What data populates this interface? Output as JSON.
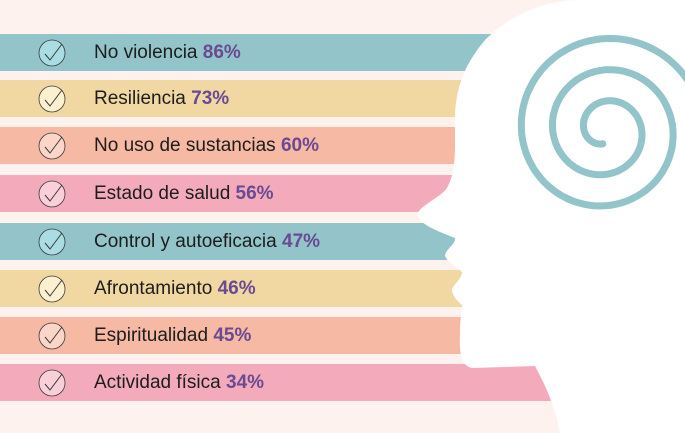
{
  "items": [
    {
      "label": "No violencia",
      "percent": "86%",
      "color": "#92c4c9",
      "icon_fill": "#a9dde3"
    },
    {
      "label": "Resiliencia",
      "percent": "73%",
      "color": "#f1d8a3",
      "icon_fill": "#fbf1d0"
    },
    {
      "label": "No uso de sustancias",
      "percent": "60%",
      "color": "#f6b9a3",
      "icon_fill": "#fbd6c8"
    },
    {
      "label": "Estado de salud",
      "percent": "56%",
      "color": "#f3abbb",
      "icon_fill": "#f9d0da"
    },
    {
      "label": "Control y autoeficacia",
      "percent": "47%",
      "color": "#92c4c9",
      "icon_fill": "#a9dde3"
    },
    {
      "label": "Afrontamiento",
      "percent": "46%",
      "color": "#f1d8a3",
      "icon_fill": "#fbf1d0"
    },
    {
      "label": "Espiritualidad",
      "percent": "45%",
      "color": "#f6b9a3",
      "icon_fill": "#fbd6c8"
    },
    {
      "label": "Actividad física",
      "percent": "34%",
      "color": "#f3abbb",
      "icon_fill": "#f9d0da"
    }
  ],
  "spiral_color": "#92c4c9",
  "icons": {
    "check": "check-circle-icon",
    "head": "head-silhouette-icon",
    "spiral": "spiral-icon"
  }
}
